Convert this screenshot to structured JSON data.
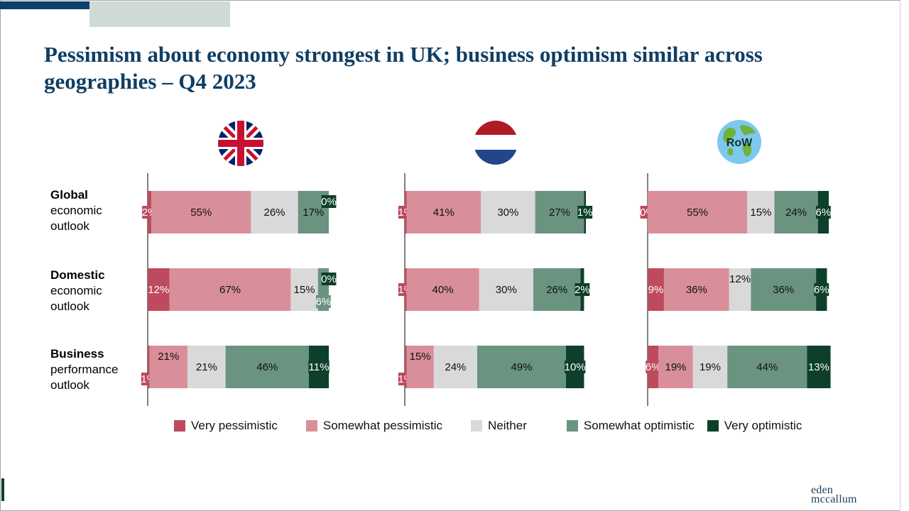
{
  "title": "Pessimism about economy strongest in UK; business optimism similar across geographies – Q4 2023",
  "rows": [
    {
      "bold": "Global",
      "rest": [
        "economic",
        "outlook"
      ]
    },
    {
      "bold": "Domestic",
      "rest": [
        "economic",
        "outlook"
      ]
    },
    {
      "bold": "Business",
      "rest": [
        "performance",
        "outlook"
      ]
    }
  ],
  "panels": [
    {
      "name": "UK",
      "icon": "uk-flag-icon"
    },
    {
      "name": "Netherlands",
      "icon": "netherlands-flag-icon"
    },
    {
      "name": "RoW",
      "icon": "globe-icon",
      "badge": "RoW"
    }
  ],
  "legend": [
    {
      "label": "Very pessimistic",
      "color": "#be4a5d"
    },
    {
      "label": "Somewhat pessimistic",
      "color": "#d98f99"
    },
    {
      "label": "Neither",
      "color": "#d9d9d9"
    },
    {
      "label": "Somewhat optimistic",
      "color": "#6a9380"
    },
    {
      "label": "Very optimistic",
      "color": "#0d3f2a"
    }
  ],
  "chart_data": {
    "type": "bar",
    "orientation": "horizontal-stacked",
    "categories": [
      "Very pessimistic",
      "Somewhat pessimistic",
      "Neither",
      "Somewhat optimistic",
      "Very optimistic"
    ],
    "panels": [
      {
        "name": "UK",
        "rows": [
          {
            "row": "Global economic outlook",
            "values": [
              2,
              55,
              26,
              17,
              0
            ]
          },
          {
            "row": "Domestic economic outlook",
            "values": [
              12,
              67,
              15,
              6,
              0
            ]
          },
          {
            "row": "Business performance outlook",
            "values": [
              1,
              21,
              21,
              46,
              11
            ]
          }
        ]
      },
      {
        "name": "Netherlands",
        "rows": [
          {
            "row": "Global economic outlook",
            "values": [
              1,
              41,
              30,
              27,
              1
            ]
          },
          {
            "row": "Domestic economic outlook",
            "values": [
              1,
              40,
              30,
              26,
              2
            ]
          },
          {
            "row": "Business performance outlook",
            "values": [
              1,
              15,
              24,
              49,
              10
            ]
          }
        ]
      },
      {
        "name": "RoW",
        "rows": [
          {
            "row": "Global economic outlook",
            "values": [
              0,
              55,
              15,
              24,
              6
            ]
          },
          {
            "row": "Domestic economic outlook",
            "values": [
              9,
              36,
              12,
              36,
              6
            ]
          },
          {
            "row": "Business performance outlook",
            "values": [
              6,
              19,
              19,
              44,
              13
            ]
          }
        ]
      }
    ]
  },
  "logo": {
    "line1": "eden",
    "line2": "mccallum"
  }
}
